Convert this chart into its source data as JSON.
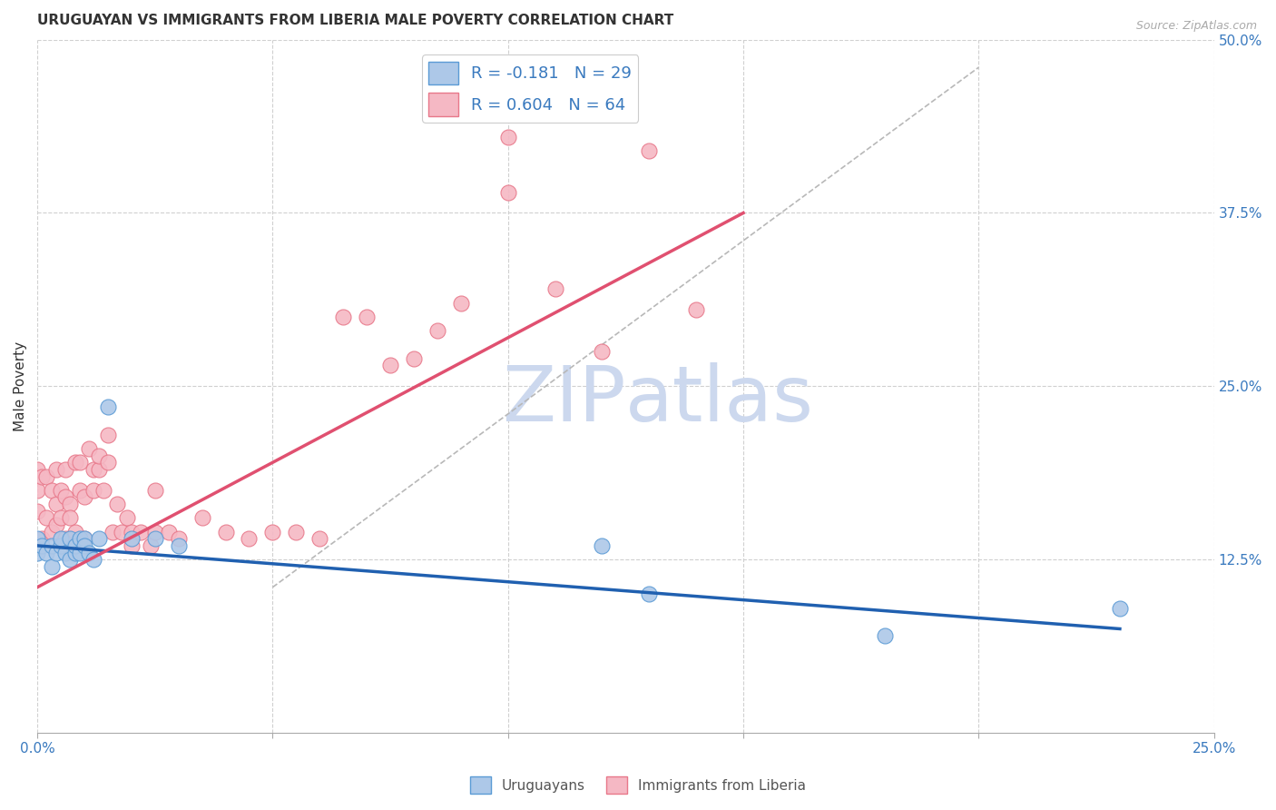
{
  "title": "URUGUAYAN VS IMMIGRANTS FROM LIBERIA MALE POVERTY CORRELATION CHART",
  "source": "Source: ZipAtlas.com",
  "ylabel": "Male Poverty",
  "xlim": [
    0,
    0.25
  ],
  "ylim": [
    0,
    0.5
  ],
  "xticks": [
    0.0,
    0.05,
    0.1,
    0.15,
    0.2,
    0.25
  ],
  "xtick_labels": [
    "0.0%",
    "",
    "",
    "",
    "",
    "25.0%"
  ],
  "ytick_labels": [
    "12.5%",
    "25.0%",
    "37.5%",
    "50.0%"
  ],
  "yticks": [
    0.125,
    0.25,
    0.375,
    0.5
  ],
  "uruguayan_R": -0.181,
  "uruguayan_N": 29,
  "liberia_R": 0.604,
  "liberia_N": 64,
  "uruguayan_color": "#adc8e8",
  "uruguayan_edge_color": "#5b9bd5",
  "liberia_color": "#f5b8c4",
  "liberia_edge_color": "#e8788a",
  "blue_line_color": "#2060b0",
  "pink_line_color": "#e05070",
  "ref_line_color": "#b8b8b8",
  "grid_color": "#d0d0d0",
  "watermark_color": "#ccd8ee",
  "uru_line_x0": 0.0,
  "uru_line_y0": 0.135,
  "uru_line_x1": 0.23,
  "uru_line_y1": 0.075,
  "lib_line_x0": 0.0,
  "lib_line_y0": 0.105,
  "lib_line_x1": 0.15,
  "lib_line_y1": 0.375,
  "ref_line_x0": 0.05,
  "ref_line_y0": 0.105,
  "ref_line_x1": 0.2,
  "ref_line_y1": 0.48,
  "uruguayan_x": [
    0.0,
    0.0,
    0.001,
    0.002,
    0.003,
    0.003,
    0.004,
    0.005,
    0.005,
    0.006,
    0.007,
    0.007,
    0.008,
    0.008,
    0.009,
    0.009,
    0.01,
    0.01,
    0.011,
    0.012,
    0.013,
    0.015,
    0.02,
    0.025,
    0.03,
    0.12,
    0.13,
    0.18,
    0.23
  ],
  "uruguayan_y": [
    0.13,
    0.14,
    0.135,
    0.13,
    0.12,
    0.135,
    0.13,
    0.135,
    0.14,
    0.13,
    0.125,
    0.14,
    0.13,
    0.135,
    0.14,
    0.13,
    0.14,
    0.135,
    0.13,
    0.125,
    0.14,
    0.235,
    0.14,
    0.14,
    0.135,
    0.135,
    0.1,
    0.07,
    0.09
  ],
  "liberia_x": [
    0.0,
    0.0,
    0.0,
    0.001,
    0.001,
    0.002,
    0.002,
    0.003,
    0.003,
    0.004,
    0.004,
    0.004,
    0.005,
    0.005,
    0.005,
    0.006,
    0.006,
    0.006,
    0.007,
    0.007,
    0.008,
    0.008,
    0.009,
    0.009,
    0.01,
    0.01,
    0.011,
    0.012,
    0.012,
    0.013,
    0.013,
    0.014,
    0.015,
    0.015,
    0.016,
    0.017,
    0.018,
    0.019,
    0.02,
    0.02,
    0.022,
    0.024,
    0.025,
    0.025,
    0.028,
    0.03,
    0.035,
    0.04,
    0.045,
    0.05,
    0.055,
    0.06,
    0.065,
    0.07,
    0.075,
    0.08,
    0.085,
    0.09,
    0.1,
    0.11,
    0.12,
    0.13,
    0.14,
    0.1
  ],
  "liberia_y": [
    0.175,
    0.16,
    0.19,
    0.14,
    0.185,
    0.155,
    0.185,
    0.175,
    0.145,
    0.19,
    0.165,
    0.15,
    0.135,
    0.175,
    0.155,
    0.19,
    0.14,
    0.17,
    0.165,
    0.155,
    0.145,
    0.195,
    0.175,
    0.195,
    0.14,
    0.17,
    0.205,
    0.19,
    0.175,
    0.19,
    0.2,
    0.175,
    0.215,
    0.195,
    0.145,
    0.165,
    0.145,
    0.155,
    0.145,
    0.135,
    0.145,
    0.135,
    0.175,
    0.145,
    0.145,
    0.14,
    0.155,
    0.145,
    0.14,
    0.145,
    0.145,
    0.14,
    0.3,
    0.3,
    0.265,
    0.27,
    0.29,
    0.31,
    0.39,
    0.32,
    0.275,
    0.42,
    0.305,
    0.43
  ]
}
